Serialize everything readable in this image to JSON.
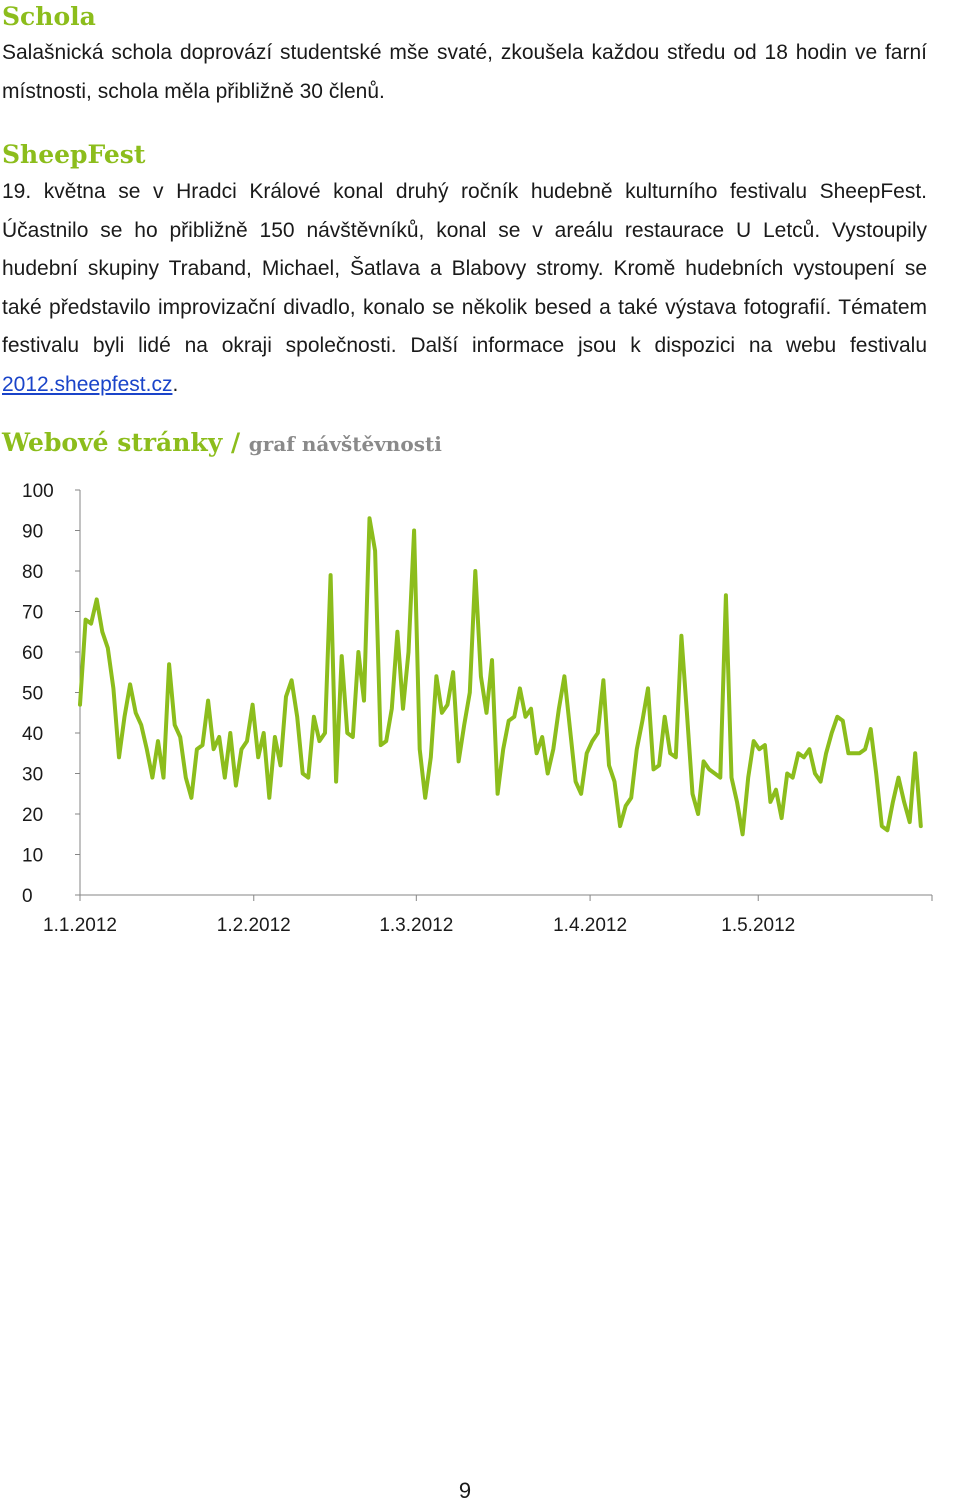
{
  "schola": {
    "heading": "Schola",
    "text": "Salašnická schola doprovází studentské mše svaté, zkoušela každou středu od 18 hodin ve farní místnosti, schola měla přibližně 30 členů."
  },
  "sheepfest": {
    "heading": "SheepFest",
    "text_before_link": "19. května se v Hradci Králové konal druhý ročník hudebně kulturního festivalu SheepFest. Účastnilo se ho přibližně 150 návštěvníků, konal se v areálu restaurace U Letců. Vystoupily hudební skupiny Traband, Michael, Šatlava a Blabovy stromy. Kromě hudebních vystoupení se také představilo improvizační divadlo, konalo se několik besed a také výstava fotografií. Tématem festivalu byli lidé na okraji společnosti. Další informace jsou k dispozici na webu festivalu ",
    "link_text": "2012.sheepfest.cz",
    "text_after_link": "."
  },
  "web": {
    "heading": "Webové stránky / ",
    "subheading": "graf návštěvnosti"
  },
  "chart_data": {
    "type": "line",
    "x_start": "1.1.2012",
    "x_end": "1.6.2012",
    "x_tick_labels": [
      "1.1.2012",
      "1.2.2012",
      "1.3.2012",
      "1.4.2012",
      "1.5.2012"
    ],
    "y_ticks": [
      0,
      10,
      20,
      30,
      40,
      50,
      60,
      70,
      80,
      90,
      100
    ],
    "ylim": [
      0,
      100
    ],
    "grid": false,
    "line_color": "#8cbd1c",
    "values": [
      47,
      68,
      67,
      73,
      65,
      61,
      51,
      34,
      44,
      52,
      45,
      42,
      36,
      29,
      38,
      29,
      57,
      42,
      39,
      29,
      24,
      36,
      37,
      48,
      36,
      39,
      29,
      40,
      27,
      36,
      38,
      47,
      34,
      40,
      24,
      39,
      32,
      49,
      53,
      44,
      30,
      29,
      44,
      38,
      40,
      79,
      28,
      59,
      40,
      39,
      60,
      48,
      93,
      85,
      37,
      38,
      46,
      65,
      46,
      60,
      90,
      36,
      24,
      34,
      54,
      45,
      47,
      55,
      33,
      42,
      50,
      80,
      54,
      45,
      58,
      25,
      36,
      43,
      44,
      51,
      44,
      46,
      35,
      39,
      30,
      36,
      46,
      54,
      41,
      28,
      25,
      35,
      38,
      40,
      53,
      32,
      28,
      17,
      22,
      24,
      36,
      43,
      51,
      31,
      32,
      44,
      35,
      34,
      64,
      45,
      25,
      20,
      33,
      31,
      30,
      29,
      74,
      29,
      23,
      15,
      29,
      38,
      36,
      37,
      23,
      26,
      19,
      30,
      29,
      35,
      34,
      36,
      30,
      28,
      35,
      40,
      44,
      43,
      35,
      35,
      35,
      36,
      41,
      30,
      17,
      16,
      23,
      29,
      23,
      18,
      35,
      17
    ]
  },
  "page_number": "9"
}
